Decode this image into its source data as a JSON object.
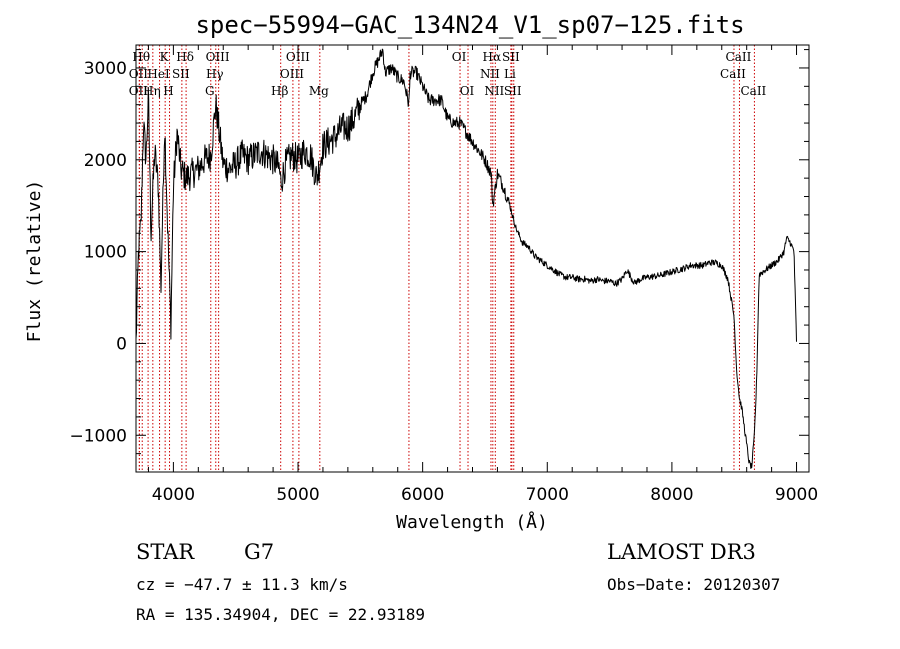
{
  "chart_data": {
    "type": "line",
    "title": "spec−55994−GAC_134N24_V1_sp07−125.fits",
    "xlabel": "Wavelength (Å)",
    "ylabel": "Flux (relative)",
    "xlim": [
      3700,
      9100
    ],
    "ylim": [
      -1400,
      3250
    ],
    "xticks": [
      4000,
      5000,
      6000,
      7000,
      8000,
      9000
    ],
    "xtick_labels": [
      "4000",
      "5000",
      "6000",
      "7000",
      "8000",
      "9000"
    ],
    "yticks": [
      -1000,
      0,
      1000,
      2000,
      3000
    ],
    "ytick_labels": [
      "−1000",
      "0",
      "1000",
      "2000",
      "3000"
    ],
    "series": [
      {
        "name": "spectrum",
        "color": "#000000",
        "x": [
          3700,
          3720,
          3740,
          3760,
          3780,
          3800,
          3820,
          3850,
          3880,
          3900,
          3930,
          3960,
          3980,
          4000,
          4030,
          4060,
          4100,
          4150,
          4200,
          4250,
          4300,
          4340,
          4400,
          4450,
          4500,
          4550,
          4600,
          4650,
          4700,
          4750,
          4800,
          4850,
          4862,
          4900,
          4950,
          5000,
          5050,
          5100,
          5150,
          5175,
          5200,
          5250,
          5300,
          5350,
          5400,
          5450,
          5500,
          5550,
          5600,
          5650,
          5680,
          5700,
          5750,
          5800,
          5850,
          5890,
          5900,
          5950,
          6000,
          6050,
          6100,
          6150,
          6200,
          6250,
          6300,
          6350,
          6400,
          6450,
          6500,
          6550,
          6563,
          6600,
          6650,
          6700,
          6750,
          6800,
          6850,
          6900,
          6950,
          7000,
          7050,
          7100,
          7150,
          7200,
          7250,
          7300,
          7350,
          7400,
          7450,
          7500,
          7550,
          7600,
          7640,
          7680,
          7700,
          7750,
          7800,
          7850,
          7900,
          7950,
          8000,
          8050,
          8100,
          8150,
          8200,
          8250,
          8300,
          8350,
          8400,
          8450,
          8498,
          8520,
          8542,
          8560,
          8580,
          8600,
          8620,
          8640,
          8662,
          8680,
          8700,
          8750,
          8800,
          8850,
          8900,
          8920,
          8950,
          8980,
          9000
        ],
        "y": [
          0,
          1000,
          1300,
          2400,
          2000,
          2700,
          1200,
          2100,
          1700,
          600,
          2400,
          1000,
          200,
          1700,
          2300,
          1900,
          1800,
          1850,
          1900,
          2000,
          2050,
          2600,
          1950,
          1900,
          1950,
          2050,
          2000,
          2050,
          2100,
          2050,
          2000,
          1900,
          1750,
          1950,
          2050,
          2000,
          2100,
          2050,
          1800,
          1950,
          2150,
          2200,
          2250,
          2350,
          2350,
          2450,
          2600,
          2700,
          2950,
          3100,
          3200,
          2950,
          3000,
          2900,
          2850,
          2600,
          2950,
          2950,
          2800,
          2650,
          2650,
          2650,
          2450,
          2400,
          2400,
          2300,
          2200,
          2100,
          2000,
          1850,
          1500,
          1850,
          1700,
          1500,
          1250,
          1100,
          1050,
          950,
          900,
          850,
          800,
          750,
          720,
          720,
          700,
          700,
          680,
          700,
          680,
          680,
          650,
          700,
          800,
          700,
          660,
          700,
          720,
          730,
          740,
          760,
          780,
          800,
          820,
          850,
          850,
          850,
          880,
          880,
          850,
          700,
          300,
          -300,
          -600,
          -700,
          -900,
          -1100,
          -1300,
          -1350,
          -1000,
          -400,
          750,
          800,
          850,
          900,
          1000,
          1150,
          1100,
          1000,
          0
        ]
      }
    ],
    "spectral_lines": [
      {
        "x": 3750,
        "label": "Hθ",
        "row": 0
      },
      {
        "x": 3727,
        "label": "OII",
        "row": 1
      },
      {
        "x": 3727,
        "label": "OII",
        "row": 2
      },
      {
        "x": 3797,
        "label": "",
        "row": 2
      },
      {
        "x": 3835,
        "label": "Hη",
        "row": 2
      },
      {
        "x": 3889,
        "label": "HeI",
        "row": 1
      },
      {
        "x": 3934,
        "label": "K",
        "row": 0
      },
      {
        "x": 3969,
        "label": "H",
        "row": 2
      },
      {
        "x": 4068,
        "label": "SII",
        "row": 1
      },
      {
        "x": 4102,
        "label": "Hδ",
        "row": 0
      },
      {
        "x": 4300,
        "label": "G",
        "row": 2
      },
      {
        "x": 4340,
        "label": "Hγ",
        "row": 1
      },
      {
        "x": 4363,
        "label": "OIII",
        "row": 0
      },
      {
        "x": 4861,
        "label": "Hβ",
        "row": 2
      },
      {
        "x": 4959,
        "label": "OIII",
        "row": 1
      },
      {
        "x": 5007,
        "label": "OIII",
        "row": 0
      },
      {
        "x": 5175,
        "label": "Mg",
        "row": 2
      },
      {
        "x": 5890,
        "label": "",
        "row": 2
      },
      {
        "x": 6300,
        "label": "OI",
        "row": 0
      },
      {
        "x": 6364,
        "label": "OI",
        "row": 2
      },
      {
        "x": 6548,
        "label": "NII",
        "row": 1
      },
      {
        "x": 6563,
        "label": "Hα",
        "row": 0
      },
      {
        "x": 6583,
        "label": "NII",
        "row": 2
      },
      {
        "x": 6708,
        "label": "Li",
        "row": 1
      },
      {
        "x": 6716,
        "label": "SII",
        "row": 0
      },
      {
        "x": 6731,
        "label": "SII",
        "row": 2
      },
      {
        "x": 8498,
        "label": "CaII",
        "row": 1
      },
      {
        "x": 8542,
        "label": "CaII",
        "row": 0
      },
      {
        "x": 8662,
        "label": "CaII",
        "row": 2
      }
    ]
  },
  "footer": {
    "object_class": "STAR",
    "subclass": "G7",
    "survey": "LAMOST DR3",
    "redshift": "cz = −47.7 ± 11.3 km/s",
    "obs_date": "Obs−Date: 20120307",
    "coords": "RA = 135.34904, DEC =  22.93189"
  },
  "colors": {
    "axis": "#000000",
    "line_marker": "#cc0000",
    "background": "#ffffff"
  }
}
